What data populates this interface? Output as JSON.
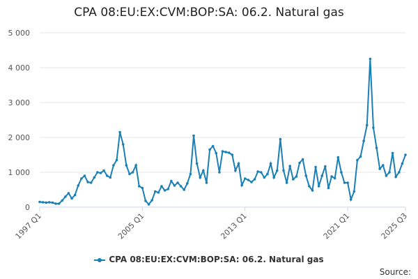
{
  "chart_data": {
    "type": "line",
    "title": "CPA 08:EU:EX:CVM:BOP:SA: 06.2. Natural gas",
    "xlabel": "",
    "ylabel": "",
    "ylim": [
      0,
      5000
    ],
    "yticks": [
      "0",
      "1 000",
      "2 000",
      "3 000",
      "4 000",
      "5 000"
    ],
    "xticks": [
      "1997 Q1",
      "2005 Q1",
      "2013 Q1",
      "2021 Q1",
      "2025 Q3"
    ],
    "x_range": [
      "1997 Q1",
      "2025 Q3"
    ],
    "grid": true,
    "legend_position": "bottom",
    "series": [
      {
        "name": "CPA 08:EU:EX:CVM:BOP:SA: 06.2. Natural gas",
        "color": "#1a7fb5",
        "values": [
          150,
          140,
          130,
          140,
          130,
          100,
          100,
          190,
          300,
          400,
          250,
          350,
          620,
          820,
          900,
          720,
          700,
          850,
          1000,
          980,
          1050,
          900,
          850,
          1200,
          1350,
          2150,
          1800,
          1200,
          950,
          1000,
          1200,
          600,
          550,
          180,
          80,
          200,
          450,
          420,
          600,
          480,
          520,
          750,
          620,
          700,
          600,
          500,
          680,
          950,
          2050,
          1250,
          850,
          1050,
          700,
          1650,
          1750,
          1550,
          1000,
          1600,
          1580,
          1560,
          1500,
          1050,
          1250,
          630,
          820,
          780,
          720,
          800,
          1020,
          1000,
          850,
          950,
          1250,
          850,
          1050,
          1950,
          1050,
          700,
          1180,
          800,
          880,
          1270,
          1370,
          900,
          600,
          480,
          1150,
          600,
          900,
          1170,
          550,
          880,
          830,
          1430,
          1000,
          700,
          700,
          220,
          450,
          1350,
          1450,
          1900,
          2350,
          4250,
          2280,
          1700,
          1100,
          1200,
          900,
          1000,
          1550,
          870,
          1000,
          1250,
          1500
        ]
      }
    ]
  },
  "source_label": "Source:"
}
